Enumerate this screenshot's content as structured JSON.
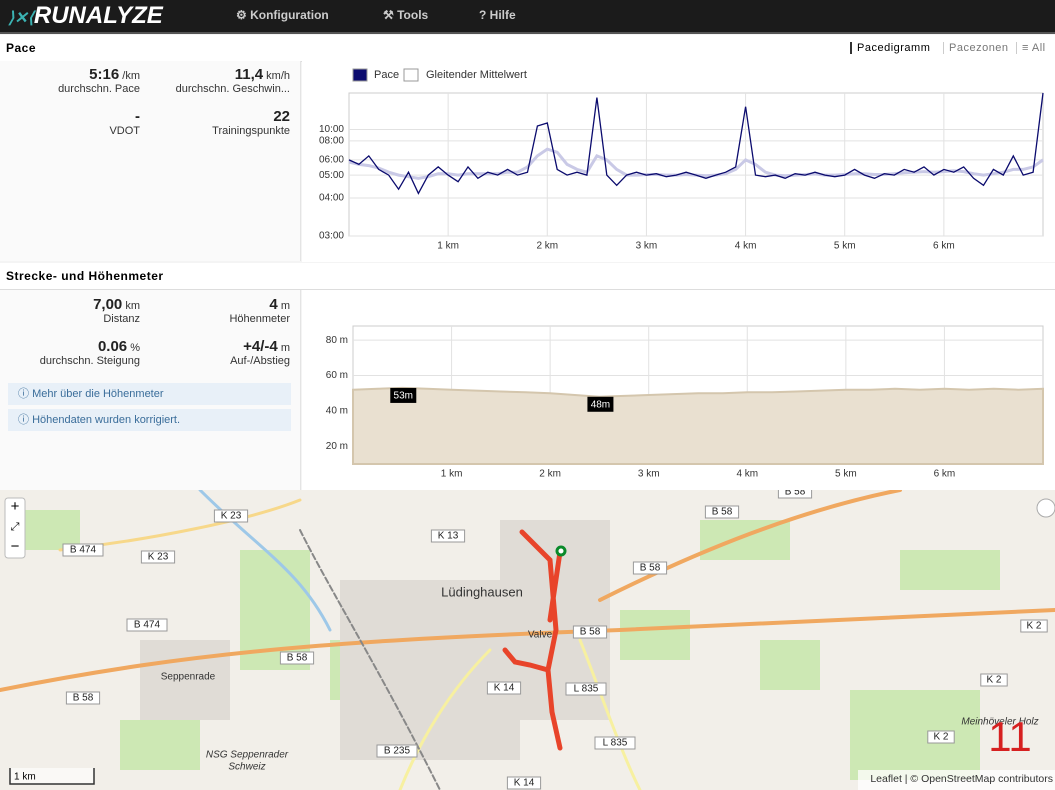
{
  "header": {
    "logo": "RUNALYZE",
    "nav": [
      "Konfiguration",
      "Tools",
      "Hilfe"
    ]
  },
  "pace": {
    "title": "Pace",
    "tabs": [
      "Pacedigramm",
      "Pacezonen",
      "All"
    ],
    "stats": [
      {
        "value": "5:16",
        "unit": "/km",
        "label": "durchschn. Pace"
      },
      {
        "value": "11,4",
        "unit": "km/h",
        "label": "durchschn. Geschwin..."
      },
      {
        "value": "-",
        "label": "VDOT"
      },
      {
        "value": "22",
        "label": "Trainingspunkte"
      }
    ]
  },
  "elevation": {
    "title": "Strecke- und Höhenmeter",
    "stats": [
      {
        "value": "7,00",
        "unit": "km",
        "label": "Distanz"
      },
      {
        "value": "4",
        "unit": "m",
        "label": "Höhenmeter"
      },
      {
        "value": "0.06",
        "unit": "%",
        "label": "durchschn. Steigung"
      },
      {
        "value": "+4/-4",
        "unit": "m",
        "label": "Auf-/Abstieg"
      }
    ],
    "info": [
      "Mehr über die Höhenmeter",
      "Höhendaten wurden korrigiert."
    ]
  },
  "chart_data": [
    {
      "type": "line",
      "scale": "reciprocal",
      "grid": true,
      "x": [
        0,
        0.1,
        0.2,
        0.3,
        0.4,
        0.5,
        0.6,
        0.7,
        0.8,
        0.9,
        1,
        1.1,
        1.2,
        1.3,
        1.4,
        1.5,
        1.6,
        1.7,
        1.8,
        1.9,
        2,
        2.1,
        2.2,
        2.3,
        2.4,
        2.5,
        2.6,
        2.7,
        2.8,
        2.9,
        3,
        3.1,
        3.2,
        3.3,
        3.4,
        3.5,
        3.6,
        3.7,
        3.8,
        3.9,
        4,
        4.1,
        4.2,
        4.3,
        4.4,
        4.5,
        4.6,
        4.7,
        4.8,
        4.9,
        5,
        5.1,
        5.2,
        5.3,
        5.4,
        5.5,
        5.6,
        5.7,
        5.8,
        5.9,
        6,
        6.1,
        6.2,
        6.3,
        6.4,
        6.5,
        6.6,
        6.7,
        6.8,
        6.9,
        7
      ],
      "series": [
        {
          "name": "Pace",
          "color": "#0b0b6e",
          "values": [
            360,
            340,
            380,
            320,
            300,
            260,
            310,
            250,
            300,
            330,
            300,
            280,
            330,
            290,
            310,
            300,
            320,
            300,
            310,
            650,
            700,
            320,
            300,
            310,
            300,
            2000,
            300,
            270,
            300,
            310,
            300,
            305,
            295,
            300,
            310,
            300,
            290,
            300,
            310,
            330,
            1200,
            300,
            295,
            300,
            290,
            305,
            300,
            310,
            300,
            295,
            300,
            320,
            300,
            290,
            305,
            300,
            320,
            310,
            330,
            300,
            320,
            310,
            330,
            290,
            270,
            320,
            300,
            380,
            300,
            310,
            3000
          ]
        },
        {
          "name": "Gleitender Mittelwert",
          "color": "#c9c9e6",
          "values": [
            350,
            340,
            335,
            325,
            310,
            300,
            295,
            290,
            295,
            305,
            305,
            300,
            305,
            305,
            305,
            305,
            310,
            310,
            330,
            380,
            420,
            400,
            340,
            320,
            310,
            380,
            360,
            320,
            300,
            300,
            302,
            302,
            300,
            300,
            302,
            300,
            298,
            300,
            305,
            320,
            360,
            340,
            310,
            300,
            298,
            300,
            302,
            304,
            300,
            300,
            302,
            305,
            305,
            302,
            302,
            305,
            308,
            310,
            312,
            310,
            312,
            315,
            312,
            305,
            300,
            305,
            310,
            320,
            320,
            330,
            360
          ]
        }
      ],
      "xlim": [
        0,
        7
      ],
      "xticks": [
        {
          "value": 1,
          "label": "1 km"
        },
        {
          "value": 2,
          "label": "2 km"
        },
        {
          "value": 3,
          "label": "3 km"
        },
        {
          "value": 4,
          "label": "4 km"
        },
        {
          "value": 5,
          "label": "5 km"
        },
        {
          "value": 6,
          "label": "6 km"
        }
      ],
      "ylim": [
        180,
        3000
      ],
      "yticks": [
        {
          "value": 180,
          "label": "03:00"
        },
        {
          "value": 240,
          "label": "04:00"
        },
        {
          "value": 300,
          "label": "05:00"
        },
        {
          "value": 360,
          "label": "06:00"
        },
        {
          "value": 480,
          "label": "08:00"
        },
        {
          "value": 600,
          "label": "10:00"
        }
      ]
    },
    {
      "type": "area",
      "color": "#e9e0d0",
      "grid": true,
      "x": [
        0,
        0.25,
        0.5,
        0.75,
        1,
        1.25,
        1.5,
        1.75,
        2,
        2.25,
        2.5,
        2.75,
        3,
        3.25,
        3.5,
        3.75,
        4,
        4.25,
        4.5,
        4.75,
        5,
        5.25,
        5.5,
        5.75,
        6,
        6.25,
        6.5,
        6.75,
        7
      ],
      "values": [
        52,
        52.5,
        53,
        52.5,
        52,
        51.5,
        51,
        50.5,
        50,
        49,
        48,
        48.5,
        49,
        49.5,
        50,
        50,
        50.5,
        50.5,
        51,
        51.5,
        52,
        52,
        52.5,
        52,
        52.5,
        52,
        52.5,
        52,
        52.5
      ],
      "annotations": [
        {
          "text": "53m",
          "x": 0.5,
          "y": 53
        },
        {
          "text": "48m",
          "x": 2.5,
          "y": 48
        }
      ],
      "xlim": [
        0,
        7
      ],
      "xticks": [
        {
          "value": 1,
          "label": "1 km"
        },
        {
          "value": 2,
          "label": "2 km"
        },
        {
          "value": 3,
          "label": "3 km"
        },
        {
          "value": 4,
          "label": "4 km"
        },
        {
          "value": 5,
          "label": "5 km"
        },
        {
          "value": 6,
          "label": "6 km"
        }
      ],
      "ylim": [
        10,
        88
      ],
      "yticks": [
        {
          "value": 20,
          "label": "20 m"
        },
        {
          "value": 40,
          "label": "40 m"
        },
        {
          "value": 60,
          "label": "60 m"
        },
        {
          "value": 80,
          "label": "80 m"
        }
      ]
    }
  ],
  "map": {
    "zoom": [
      "+",
      "−"
    ],
    "scale": "1 km",
    "attribution": "Leaflet | © OpenStreetMap contributors",
    "overlay": "11",
    "labels": [
      "K 23",
      "B 474",
      "K 23",
      "K 13",
      "Lüdinghausen",
      "B 58",
      "B 474",
      "B 58",
      "Seppenrade",
      "K 14",
      "L 835",
      "B 58",
      "L 835",
      "B 235",
      "NSG Seppenrader",
      "Schweiz",
      "K 14",
      "B 58",
      "B 58",
      "B 58",
      "K 2",
      "K 2",
      "K 2",
      "Meinhöveler Holz",
      "Valve"
    ]
  }
}
